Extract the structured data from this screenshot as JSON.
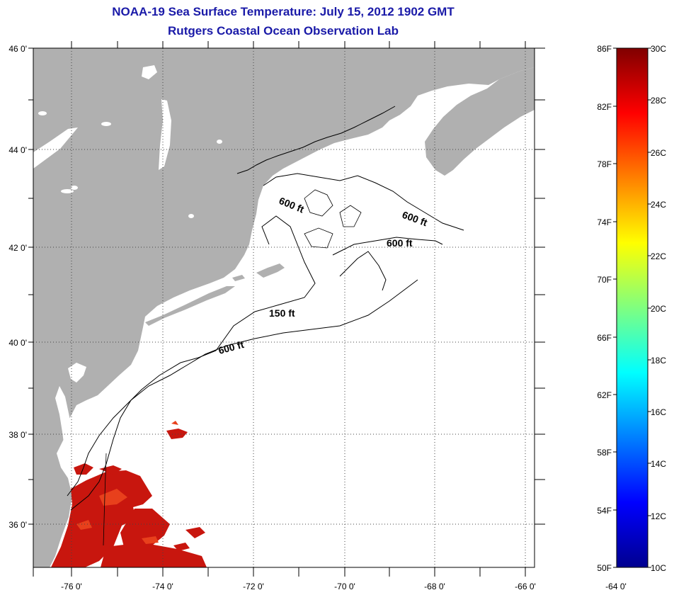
{
  "title": "NOAA-19 Sea Surface Temperature:  July 15, 2012 1902 GMT",
  "subtitle": "Rutgers Coastal Ocean Observation Lab",
  "map": {
    "lat_labels": [
      "46 0'",
      "44 0'",
      "42 0'",
      "40 0'",
      "38 0'",
      "36 0'"
    ],
    "lon_labels": [
      "-76 0'",
      "-74 0'",
      "-72 0'",
      "-70 0'",
      "-68 0'",
      "-66 0'",
      "-64 0'"
    ],
    "contour_labels": [
      "600 ft",
      "600 ft",
      "600 ft",
      "150 ft",
      "600 ft"
    ],
    "land_color": "#b0b0b0",
    "water_color": "#ffffff",
    "sst_color": "#c8160e"
  },
  "colorbar": {
    "fahrenheit_labels": [
      "86F",
      "82F",
      "78F",
      "74F",
      "70F",
      "66F",
      "62F",
      "58F",
      "54F",
      "50F"
    ],
    "celsius_labels": [
      "30C",
      "28C",
      "26C",
      "24C",
      "22C",
      "20C",
      "18C",
      "16C",
      "14C",
      "12C",
      "10C"
    ],
    "range_c": [
      10,
      30
    ],
    "range_f": [
      50,
      86
    ],
    "colormap": "jet"
  }
}
